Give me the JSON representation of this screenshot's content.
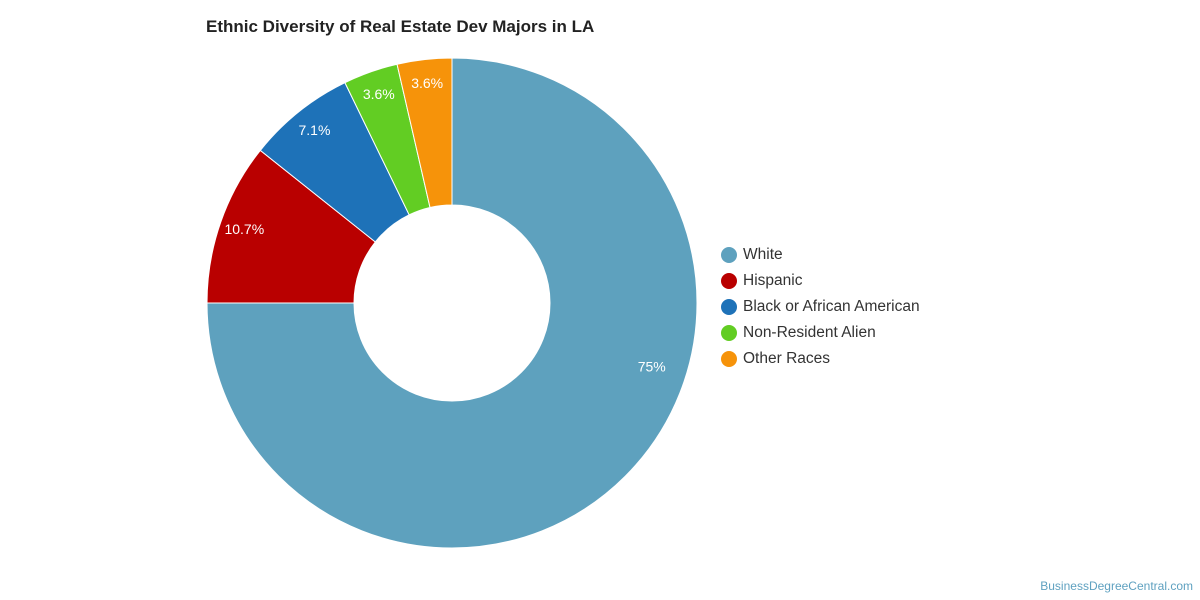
{
  "chart_data": {
    "type": "pie",
    "title": "Ethnic Diversity of Real Estate Dev Majors in LA",
    "slices": [
      {
        "name": "White",
        "value": 75,
        "label": "75%",
        "color": "#5ea1be"
      },
      {
        "name": "Hispanic",
        "value": 10.7,
        "label": "10.7%",
        "color": "#b90000"
      },
      {
        "name": "Black or African American",
        "value": 7.1,
        "label": "7.1%",
        "color": "#1e72b8"
      },
      {
        "name": "Non-Resident Alien",
        "value": 3.6,
        "label": "3.6%",
        "color": "#62cd23"
      },
      {
        "name": "Other Races",
        "value": 3.6,
        "label": "3.6%",
        "color": "#f6930a"
      }
    ],
    "legend_position": "right",
    "donut": true
  },
  "footer": {
    "source": "BusinessDegreeCentral.com"
  }
}
